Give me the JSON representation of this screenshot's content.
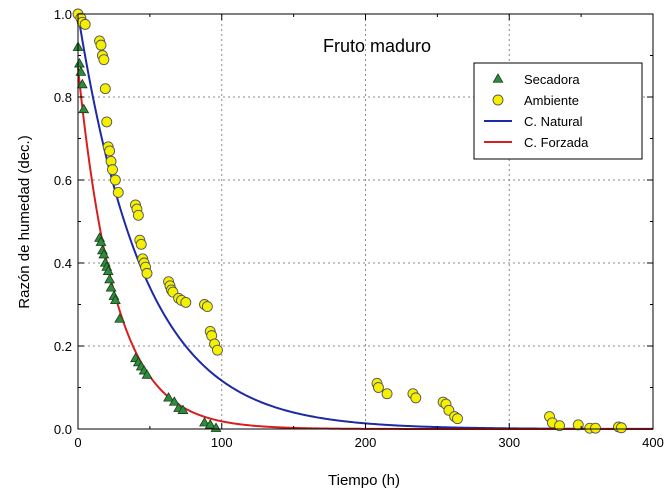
{
  "chart_data": {
    "type": "scatter",
    "title": "Fruto maduro",
    "xlabel": "Tiempo (h)",
    "ylabel": "Razón de humedad (dec.)",
    "xlim": [
      0,
      400
    ],
    "ylim": [
      0,
      1.0
    ],
    "xticks": [
      0,
      100,
      200,
      300,
      400
    ],
    "yticks": [
      0.0,
      0.2,
      0.4,
      0.6,
      0.8,
      1.0
    ],
    "xtick_labels": [
      "0",
      "100",
      "200",
      "300",
      "400"
    ],
    "ytick_labels": [
      "0.0",
      "0.2",
      "0.4",
      "0.6",
      "0.8",
      "1.0"
    ],
    "grid": true,
    "legend_position": "top-right",
    "legend": [
      "Secadora",
      "Ambiente",
      "C. Natural",
      "C. Forzada"
    ],
    "series": [
      {
        "name": "Secadora",
        "kind": "scatter",
        "marker": "triangle",
        "color": "#2e8b3c",
        "points": [
          [
            0,
            0.92
          ],
          [
            1,
            0.88
          ],
          [
            2,
            0.86
          ],
          [
            3,
            0.83
          ],
          [
            4,
            0.77
          ],
          [
            15,
            0.46
          ],
          [
            16,
            0.45
          ],
          [
            17,
            0.43
          ],
          [
            18,
            0.42
          ],
          [
            19,
            0.4
          ],
          [
            20,
            0.39
          ],
          [
            21,
            0.38
          ],
          [
            22,
            0.36
          ],
          [
            23,
            0.34
          ],
          [
            25,
            0.32
          ],
          [
            26,
            0.31
          ],
          [
            29,
            0.265
          ],
          [
            40,
            0.17
          ],
          [
            42,
            0.16
          ],
          [
            44,
            0.15
          ],
          [
            46,
            0.14
          ],
          [
            48,
            0.13
          ],
          [
            63,
            0.075
          ],
          [
            67,
            0.065
          ],
          [
            70,
            0.05
          ],
          [
            73,
            0.045
          ],
          [
            88,
            0.015
          ],
          [
            92,
            0.01
          ],
          [
            96,
            0.002
          ]
        ]
      },
      {
        "name": "Ambiente",
        "kind": "scatter",
        "marker": "circle",
        "color": "#f4f000",
        "points": [
          [
            0,
            1.0
          ],
          [
            2,
            0.99
          ],
          [
            3,
            0.98
          ],
          [
            5,
            0.975
          ],
          [
            15,
            0.935
          ],
          [
            16,
            0.925
          ],
          [
            17,
            0.9
          ],
          [
            18,
            0.89
          ],
          [
            19,
            0.82
          ],
          [
            20,
            0.74
          ],
          [
            21,
            0.68
          ],
          [
            22,
            0.67
          ],
          [
            23,
            0.645
          ],
          [
            24,
            0.625
          ],
          [
            26,
            0.6
          ],
          [
            28,
            0.57
          ],
          [
            40,
            0.54
          ],
          [
            41,
            0.53
          ],
          [
            42,
            0.515
          ],
          [
            43,
            0.455
          ],
          [
            44,
            0.445
          ],
          [
            45,
            0.41
          ],
          [
            46,
            0.4
          ],
          [
            47,
            0.39
          ],
          [
            48,
            0.375
          ],
          [
            63,
            0.355
          ],
          [
            64,
            0.345
          ],
          [
            65,
            0.335
          ],
          [
            66,
            0.33
          ],
          [
            70,
            0.315
          ],
          [
            72,
            0.31
          ],
          [
            75,
            0.305
          ],
          [
            88,
            0.3
          ],
          [
            90,
            0.295
          ],
          [
            92,
            0.235
          ],
          [
            93,
            0.225
          ],
          [
            95,
            0.205
          ],
          [
            97,
            0.19
          ],
          [
            208,
            0.11
          ],
          [
            209,
            0.1
          ],
          [
            215,
            0.085
          ],
          [
            233,
            0.085
          ],
          [
            235,
            0.075
          ],
          [
            254,
            0.065
          ],
          [
            256,
            0.06
          ],
          [
            258,
            0.045
          ],
          [
            262,
            0.03
          ],
          [
            264,
            0.025
          ],
          [
            328,
            0.03
          ],
          [
            330,
            0.015
          ],
          [
            335,
            0.008
          ],
          [
            348,
            0.01
          ],
          [
            356,
            0.002
          ],
          [
            360,
            0.002
          ],
          [
            376,
            0.005
          ],
          [
            378,
            0.003
          ]
        ]
      },
      {
        "name": "C. Natural",
        "kind": "line",
        "color": "#1c2aa3",
        "model": "exp",
        "params": {
          "a": 1.0,
          "k": 0.0215
        }
      },
      {
        "name": "C. Forzada",
        "kind": "line",
        "color": "#d62020",
        "model": "exp",
        "params": {
          "a": 0.87,
          "k": 0.0385
        }
      }
    ]
  }
}
